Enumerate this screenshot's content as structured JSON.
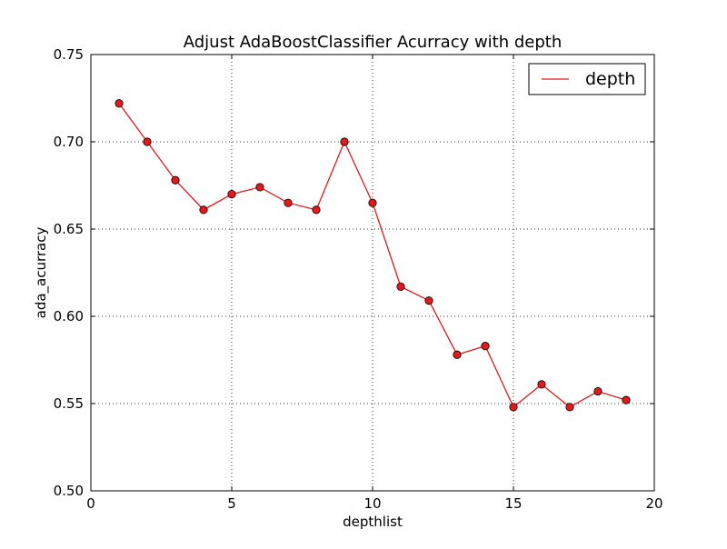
{
  "chart_data": {
    "type": "line",
    "title": "Adjust AdaBoostClassifier Acurracy with depth",
    "xlabel": "depthlist",
    "ylabel": "ada_acurracy",
    "xlim": [
      0,
      20
    ],
    "ylim": [
      0.5,
      0.75
    ],
    "xticks": [
      0,
      5,
      10,
      15,
      20
    ],
    "yticks": [
      0.5,
      0.55,
      0.6,
      0.65,
      0.7,
      0.75
    ],
    "xtick_labels": [
      "0",
      "5",
      "10",
      "15",
      "20"
    ],
    "ytick_labels": [
      "0.50",
      "0.55",
      "0.60",
      "0.65",
      "0.70",
      "0.75"
    ],
    "grid": true,
    "legend_position": "top-right",
    "series": [
      {
        "name": "depth",
        "color": "#e31a1c",
        "marker": "circle",
        "x": [
          1,
          2,
          3,
          4,
          5,
          6,
          7,
          8,
          9,
          10,
          11,
          12,
          13,
          14,
          15,
          16,
          17,
          18,
          19
        ],
        "y": [
          0.722,
          0.7,
          0.678,
          0.661,
          0.67,
          0.674,
          0.665,
          0.661,
          0.7,
          0.665,
          0.617,
          0.609,
          0.578,
          0.583,
          0.548,
          0.561,
          0.548,
          0.557,
          0.552
        ]
      }
    ]
  }
}
